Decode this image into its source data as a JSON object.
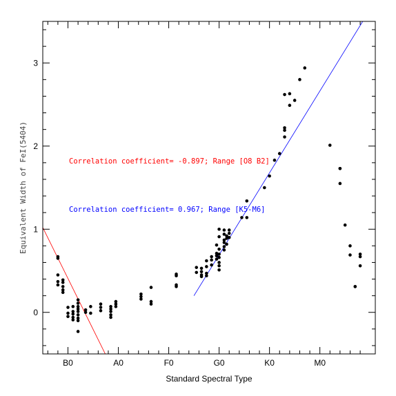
{
  "chart_data": {
    "type": "scatter",
    "xlabel": "Standard Spectral Type",
    "ylabel": "Equivalent Width of FeI(5404)",
    "x_ticks": [
      {
        "label": "B0",
        "value": 0
      },
      {
        "label": "A0",
        "value": 10
      },
      {
        "label": "F0",
        "value": 20
      },
      {
        "label": "G0",
        "value": 30
      },
      {
        "label": "K0",
        "value": 40
      },
      {
        "label": "M0",
        "value": 50
      }
    ],
    "y_ticks": [
      0,
      1,
      2,
      3
    ],
    "xlim": [
      -5,
      61
    ],
    "ylim": [
      -0.5,
      3.5
    ],
    "grid": false,
    "points": [
      [
        -2,
        0.67
      ],
      [
        -2,
        0.65
      ],
      [
        -2,
        0.45
      ],
      [
        -2,
        0.37
      ],
      [
        -2,
        0.33
      ],
      [
        -1,
        0.39
      ],
      [
        -1,
        0.36
      ],
      [
        -1,
        0.31
      ],
      [
        -1,
        0.27
      ],
      [
        -1,
        0.24
      ],
      [
        0,
        0.06
      ],
      [
        0,
        -0.01
      ],
      [
        0,
        -0.05
      ],
      [
        1,
        0.07
      ],
      [
        1,
        0.01
      ],
      [
        1,
        -0.02
      ],
      [
        1,
        -0.06
      ],
      [
        1,
        -0.09
      ],
      [
        2,
        0.15
      ],
      [
        2,
        0.11
      ],
      [
        2,
        0.07
      ],
      [
        2,
        0.04
      ],
      [
        2,
        0.01
      ],
      [
        2,
        -0.03
      ],
      [
        2,
        -0.07
      ],
      [
        2,
        -0.1
      ],
      [
        2,
        -0.23
      ],
      [
        3.5,
        0.03
      ],
      [
        3.5,
        0.0
      ],
      [
        4.5,
        0.07
      ],
      [
        4.5,
        -0.01
      ],
      [
        6.5,
        0.1
      ],
      [
        6.5,
        0.06
      ],
      [
        6.5,
        0.02
      ],
      [
        8.5,
        0.07
      ],
      [
        8.5,
        0.04
      ],
      [
        8.5,
        0.01
      ],
      [
        8.5,
        -0.03
      ],
      [
        8.5,
        -0.06
      ],
      [
        9.5,
        0.13
      ],
      [
        9.5,
        0.1
      ],
      [
        9.5,
        0.07
      ],
      [
        14.5,
        0.22
      ],
      [
        14.5,
        0.19
      ],
      [
        14.5,
        0.16
      ],
      [
        16.5,
        0.3
      ],
      [
        16.5,
        0.13
      ],
      [
        16.5,
        0.1
      ],
      [
        21.5,
        0.46
      ],
      [
        21.5,
        0.44
      ],
      [
        21.5,
        0.33
      ],
      [
        21.5,
        0.31
      ],
      [
        25.5,
        0.54
      ],
      [
        25.5,
        0.48
      ],
      [
        26.5,
        0.53
      ],
      [
        26.5,
        0.49
      ],
      [
        26.5,
        0.45
      ],
      [
        26.5,
        0.43
      ],
      [
        27.5,
        0.62
      ],
      [
        27.5,
        0.55
      ],
      [
        27.5,
        0.47
      ],
      [
        27.5,
        0.44
      ],
      [
        28.5,
        0.67
      ],
      [
        28.5,
        0.63
      ],
      [
        28.5,
        0.57
      ],
      [
        29.5,
        0.71
      ],
      [
        29.5,
        0.68
      ],
      [
        29.5,
        0.64
      ],
      [
        29.5,
        0.81
      ],
      [
        30,
        1.0
      ],
      [
        30,
        0.91
      ],
      [
        30,
        0.76
      ],
      [
        30,
        0.7
      ],
      [
        30,
        0.66
      ],
      [
        30,
        0.6
      ],
      [
        30,
        0.56
      ],
      [
        30,
        0.51
      ],
      [
        31,
        0.99
      ],
      [
        31,
        0.94
      ],
      [
        31,
        0.87
      ],
      [
        31,
        0.84
      ],
      [
        31,
        0.79
      ],
      [
        31,
        0.75
      ],
      [
        31.5,
        0.92
      ],
      [
        31.5,
        0.89
      ],
      [
        31.5,
        0.82
      ],
      [
        32,
        0.99
      ],
      [
        32,
        0.95
      ],
      [
        32,
        0.9
      ],
      [
        34.5,
        1.14
      ],
      [
        35.5,
        1.34
      ],
      [
        35.5,
        1.14
      ],
      [
        39,
        1.5
      ],
      [
        40,
        1.64
      ],
      [
        41,
        1.83
      ],
      [
        42,
        1.91
      ],
      [
        43,
        2.22
      ],
      [
        43,
        2.19
      ],
      [
        43,
        2.11
      ],
      [
        43,
        2.62
      ],
      [
        44,
        2.63
      ],
      [
        44,
        2.49
      ],
      [
        45,
        2.55
      ],
      [
        46,
        2.8
      ],
      [
        47,
        2.94
      ],
      [
        52,
        2.01
      ],
      [
        54,
        1.73
      ],
      [
        54,
        1.73
      ],
      [
        54,
        1.55
      ],
      [
        55,
        1.05
      ],
      [
        56,
        0.8
      ],
      [
        56,
        0.69
      ],
      [
        57,
        0.31
      ],
      [
        57,
        0.31
      ],
      [
        58,
        0.7
      ],
      [
        58,
        0.67
      ],
      [
        58,
        0.56
      ]
    ],
    "fit_lines": [
      {
        "color": "#ff0000",
        "x": [
          -5,
          7.4
        ],
        "y": [
          1.02,
          -0.5
        ]
      },
      {
        "color": "#0000ff",
        "x": [
          25,
          58.5
        ],
        "y": [
          0.2,
          3.5
        ]
      }
    ],
    "annotations": [
      {
        "text": "Correlation coefficient= -0.897; Range [O8 B2]",
        "color": "#ff0000",
        "x": -5.0,
        "y": 1.79
      },
      {
        "text": "Correlation coefficient= 0.967; Range [K5-M6]",
        "color": "#0000ff",
        "x": -5.0,
        "y": 1.21
      }
    ]
  }
}
